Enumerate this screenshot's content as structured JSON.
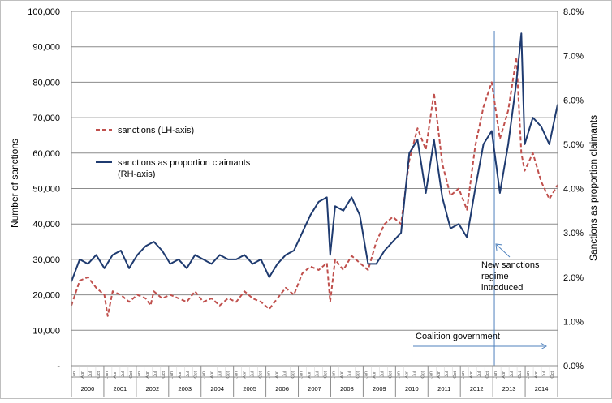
{
  "chart_data": {
    "type": "line",
    "ylabel": "Number of sanctions",
    "y2label": "Sanctions as proportion claimants",
    "ylim": [
      0,
      100000
    ],
    "y2lim": [
      0,
      8.0
    ],
    "y_ticks": [
      "-",
      "10,000",
      "20,000",
      "30,000",
      "40,000",
      "50,000",
      "60,000",
      "70,000",
      "80,000",
      "90,000",
      "100,000"
    ],
    "y2_ticks": [
      "0.0%",
      "1.0%",
      "2.0%",
      "3.0%",
      "4.0%",
      "5.0%",
      "6.0%",
      "7.0%",
      "8.0%"
    ],
    "x_range": [
      2000.0,
      2014.75
    ],
    "years": [
      "2000",
      "2001",
      "2002",
      "2003",
      "2004",
      "2005",
      "2006",
      "2007",
      "2008",
      "2009",
      "2010",
      "2011",
      "2012",
      "2013",
      "2014"
    ],
    "month_labels": [
      "Jan",
      "Apr",
      "Jul",
      "Oct"
    ],
    "grid": "horizontal",
    "legend_position": "upper-left",
    "series": [
      {
        "name": "sanctions (LH-axis)",
        "axis": "left",
        "color": "#c0504d",
        "style": "dashed",
        "points": [
          [
            2000.0,
            17000
          ],
          [
            2000.25,
            24000
          ],
          [
            2000.5,
            25000
          ],
          [
            2000.75,
            22000
          ],
          [
            2001.0,
            20000
          ],
          [
            2001.1,
            14000
          ],
          [
            2001.25,
            21000
          ],
          [
            2001.5,
            20000
          ],
          [
            2001.75,
            18000
          ],
          [
            2002.0,
            20000
          ],
          [
            2002.25,
            19000
          ],
          [
            2002.4,
            17000
          ],
          [
            2002.5,
            21000
          ],
          [
            2002.75,
            19000
          ],
          [
            2003.0,
            20000
          ],
          [
            2003.25,
            19000
          ],
          [
            2003.5,
            18000
          ],
          [
            2003.75,
            21000
          ],
          [
            2004.0,
            18000
          ],
          [
            2004.25,
            19000
          ],
          [
            2004.5,
            17000
          ],
          [
            2004.75,
            19000
          ],
          [
            2005.0,
            18000
          ],
          [
            2005.25,
            21000
          ],
          [
            2005.5,
            19000
          ],
          [
            2005.75,
            18000
          ],
          [
            2006.0,
            16000
          ],
          [
            2006.25,
            19000
          ],
          [
            2006.5,
            22000
          ],
          [
            2006.75,
            20000
          ],
          [
            2007.0,
            26000
          ],
          [
            2007.25,
            28000
          ],
          [
            2007.5,
            27000
          ],
          [
            2007.75,
            29000
          ],
          [
            2007.85,
            18000
          ],
          [
            2008.0,
            30000
          ],
          [
            2008.25,
            27000
          ],
          [
            2008.5,
            31000
          ],
          [
            2008.75,
            29000
          ],
          [
            2009.0,
            27000
          ],
          [
            2009.25,
            35000
          ],
          [
            2009.5,
            40000
          ],
          [
            2009.75,
            42000
          ],
          [
            2010.0,
            40000
          ],
          [
            2010.25,
            58000
          ],
          [
            2010.5,
            67000
          ],
          [
            2010.75,
            61000
          ],
          [
            2011.0,
            77000
          ],
          [
            2011.25,
            57000
          ],
          [
            2011.5,
            48000
          ],
          [
            2011.75,
            50000
          ],
          [
            2012.0,
            44000
          ],
          [
            2012.25,
            62000
          ],
          [
            2012.5,
            73000
          ],
          [
            2012.75,
            80000
          ],
          [
            2013.0,
            64000
          ],
          [
            2013.25,
            72000
          ],
          [
            2013.5,
            87000
          ],
          [
            2013.65,
            60000
          ],
          [
            2013.75,
            55000
          ],
          [
            2014.0,
            60000
          ],
          [
            2014.25,
            52000
          ],
          [
            2014.5,
            47000
          ],
          [
            2014.75,
            51000
          ]
        ]
      },
      {
        "name": "sanctions as proportion claimants (RH-axis)",
        "axis": "right",
        "color": "#1f3b70",
        "style": "solid",
        "points": [
          [
            2000.0,
            1.9
          ],
          [
            2000.25,
            2.4
          ],
          [
            2000.5,
            2.3
          ],
          [
            2000.75,
            2.5
          ],
          [
            2001.0,
            2.2
          ],
          [
            2001.25,
            2.5
          ],
          [
            2001.5,
            2.6
          ],
          [
            2001.75,
            2.2
          ],
          [
            2002.0,
            2.5
          ],
          [
            2002.25,
            2.7
          ],
          [
            2002.5,
            2.8
          ],
          [
            2002.75,
            2.6
          ],
          [
            2003.0,
            2.3
          ],
          [
            2003.25,
            2.4
          ],
          [
            2003.5,
            2.2
          ],
          [
            2003.75,
            2.5
          ],
          [
            2004.0,
            2.4
          ],
          [
            2004.25,
            2.3
          ],
          [
            2004.5,
            2.5
          ],
          [
            2004.75,
            2.4
          ],
          [
            2005.0,
            2.4
          ],
          [
            2005.25,
            2.5
          ],
          [
            2005.5,
            2.3
          ],
          [
            2005.75,
            2.4
          ],
          [
            2006.0,
            2.0
          ],
          [
            2006.25,
            2.3
          ],
          [
            2006.5,
            2.5
          ],
          [
            2006.75,
            2.6
          ],
          [
            2007.0,
            3.0
          ],
          [
            2007.25,
            3.4
          ],
          [
            2007.5,
            3.7
          ],
          [
            2007.75,
            3.8
          ],
          [
            2007.85,
            2.5
          ],
          [
            2008.0,
            3.6
          ],
          [
            2008.25,
            3.5
          ],
          [
            2008.5,
            3.8
          ],
          [
            2008.75,
            3.4
          ],
          [
            2009.0,
            2.3
          ],
          [
            2009.25,
            2.3
          ],
          [
            2009.5,
            2.6
          ],
          [
            2009.75,
            2.8
          ],
          [
            2010.0,
            3.0
          ],
          [
            2010.25,
            4.8
          ],
          [
            2010.5,
            5.1
          ],
          [
            2010.75,
            3.9
          ],
          [
            2011.0,
            5.1
          ],
          [
            2011.25,
            3.8
          ],
          [
            2011.5,
            3.1
          ],
          [
            2011.75,
            3.2
          ],
          [
            2012.0,
            2.9
          ],
          [
            2012.25,
            4.0
          ],
          [
            2012.5,
            5.0
          ],
          [
            2012.75,
            5.3
          ],
          [
            2013.0,
            3.9
          ],
          [
            2013.25,
            5.0
          ],
          [
            2013.5,
            6.4
          ],
          [
            2013.65,
            7.5
          ],
          [
            2013.75,
            5.0
          ],
          [
            2014.0,
            5.6
          ],
          [
            2014.25,
            5.4
          ],
          [
            2014.5,
            5.0
          ],
          [
            2014.75,
            5.9
          ]
        ]
      }
    ],
    "annotations": {
      "coalition_label": "Coalition government",
      "coalition_start": 2010.33,
      "new_regime_lines": [
        "New sanctions",
        "regime",
        "introduced"
      ],
      "new_regime_start": 2012.83
    }
  }
}
